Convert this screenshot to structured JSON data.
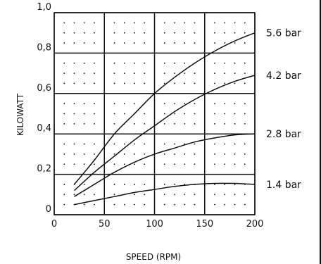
{
  "chart_data": {
    "type": "line",
    "title": "",
    "xlabel": "SPEED (RPM)",
    "ylabel": "KILOWATT",
    "xlim": [
      0,
      200
    ],
    "ylim": [
      0,
      1.0
    ],
    "x_ticks": [
      {
        "value": 0,
        "label": "0"
      },
      {
        "value": 50,
        "label": "50"
      },
      {
        "value": 100,
        "label": "100"
      },
      {
        "value": 150,
        "label": "150"
      },
      {
        "value": 200,
        "label": "200"
      }
    ],
    "y_ticks": [
      {
        "value": 0,
        "label": "0"
      },
      {
        "value": 0.2,
        "label": "0,2"
      },
      {
        "value": 0.4,
        "label": "0,4"
      },
      {
        "value": 0.6,
        "label": "0,6"
      },
      {
        "value": 0.8,
        "label": "0,8"
      },
      {
        "value": 1.0,
        "label": "1,0"
      }
    ],
    "grid": true,
    "dotted_minor_grid": true,
    "legend": "right-of-plot",
    "series": [
      {
        "name": "5.6 bar",
        "x": [
          20,
          40,
          60,
          80,
          100,
          120,
          140,
          160,
          180,
          200
        ],
        "y": [
          0.15,
          0.27,
          0.4,
          0.5,
          0.6,
          0.68,
          0.75,
          0.81,
          0.86,
          0.9
        ]
      },
      {
        "name": "4.2 bar",
        "x": [
          20,
          40,
          60,
          80,
          100,
          120,
          140,
          160,
          180,
          200
        ],
        "y": [
          0.12,
          0.21,
          0.29,
          0.37,
          0.44,
          0.51,
          0.57,
          0.62,
          0.66,
          0.69
        ]
      },
      {
        "name": "2.8 bar",
        "x": [
          20,
          40,
          60,
          80,
          100,
          120,
          140,
          160,
          180,
          200
        ],
        "y": [
          0.09,
          0.15,
          0.21,
          0.26,
          0.3,
          0.33,
          0.36,
          0.38,
          0.395,
          0.4
        ]
      },
      {
        "name": "1.4 bar",
        "x": [
          20,
          40,
          60,
          80,
          100,
          120,
          140,
          160,
          180,
          200
        ],
        "y": [
          0.05,
          0.07,
          0.09,
          0.11,
          0.125,
          0.14,
          0.15,
          0.155,
          0.155,
          0.15
        ]
      }
    ],
    "colors": {
      "ink": "#111111",
      "background": "#ffffff"
    }
  }
}
